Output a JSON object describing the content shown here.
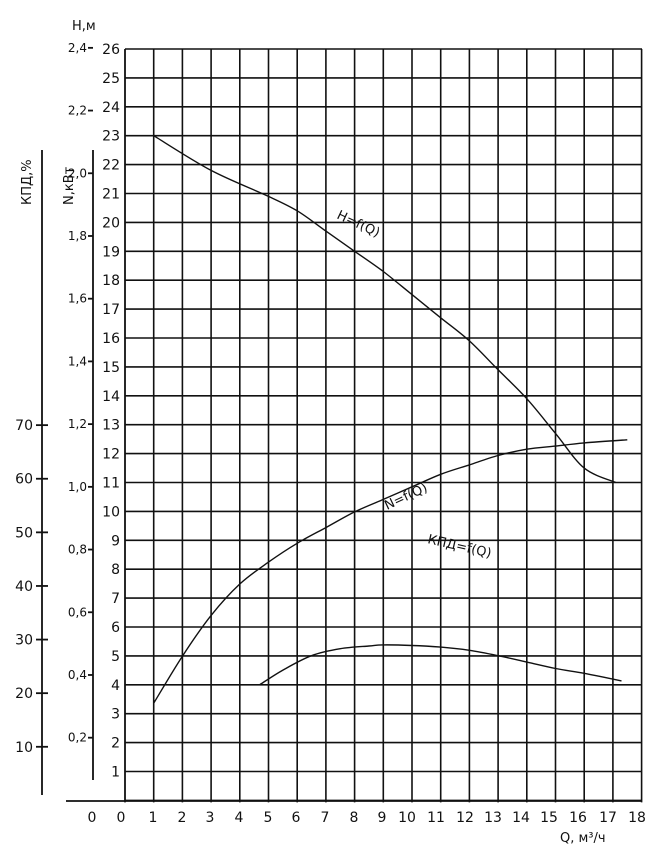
{
  "chart_data": {
    "type": "line",
    "x_axis": {
      "label": "Q, м³/ч",
      "ticks": [
        "0",
        "0",
        "1",
        "2",
        "3",
        "4",
        "5",
        "6",
        "7",
        "8",
        "9",
        "10",
        "11",
        "12",
        "13",
        "14",
        "15",
        "16",
        "17",
        "18"
      ],
      "range": [
        0,
        18
      ],
      "grid": true
    },
    "axes": [
      {
        "id": "H",
        "label": "Н,м",
        "range": [
          0,
          26
        ],
        "ticks": [
          "1",
          "2",
          "3",
          "4",
          "5",
          "6",
          "7",
          "8",
          "9",
          "10",
          "11",
          "12",
          "13",
          "14",
          "15",
          "16",
          "17",
          "18",
          "19",
          "20",
          "21",
          "22",
          "23",
          "24",
          "25",
          "26"
        ]
      },
      {
        "id": "N",
        "label": "N,кВт",
        "range": [
          0,
          2.6
        ],
        "ticks": [
          "0,2",
          "0,4",
          "0,6",
          "0,8",
          "1,0",
          "1,2",
          "1,4",
          "1,6",
          "1,8",
          "2,0",
          "2,2",
          "2,4"
        ]
      },
      {
        "id": "KPD",
        "label": "КПД,%",
        "range": [
          0,
          86.7
        ],
        "ticks": [
          "10",
          "20",
          "30",
          "40",
          "50",
          "60",
          "70"
        ]
      }
    ],
    "series": [
      {
        "name": "Н=f(Q)",
        "axis": "H",
        "x": [
          1,
          3,
          5,
          6,
          7,
          8,
          9,
          10,
          11,
          12,
          13,
          14,
          15,
          16,
          17.1
        ],
        "y": [
          23,
          21.8,
          20.9,
          20.4,
          19.7,
          19.0,
          18.3,
          17.5,
          16.7,
          15.9,
          14.9,
          13.9,
          12.7,
          11.5,
          11.0
        ]
      },
      {
        "name": "N=f(Q)",
        "axis": "N",
        "x": [
          1,
          2,
          3,
          4,
          5,
          6,
          7,
          8,
          9,
          10,
          11,
          12,
          13,
          14,
          15,
          16,
          17.5
        ],
        "y": [
          0.31,
          0.46,
          0.59,
          0.69,
          0.76,
          0.82,
          0.87,
          0.92,
          0.96,
          1.0,
          1.04,
          1.07,
          1.1,
          1.12,
          1.13,
          1.14,
          1.15
        ]
      },
      {
        "name": "КПД=f(Q)",
        "axis": "KPD",
        "x": [
          4.7,
          5.5,
          6.5,
          7.5,
          8.5,
          9,
          10,
          11,
          12,
          13,
          14,
          15,
          16,
          17.3
        ],
        "y": [
          21.6,
          24.3,
          27.0,
          28.3,
          28.8,
          29.0,
          28.9,
          28.6,
          28.0,
          27.0,
          25.8,
          24.6,
          23.7,
          22.3
        ]
      }
    ],
    "annotations": [
      "Н=f(Q)",
      "N=f(Q)",
      "КПД=f(Q)"
    ]
  }
}
